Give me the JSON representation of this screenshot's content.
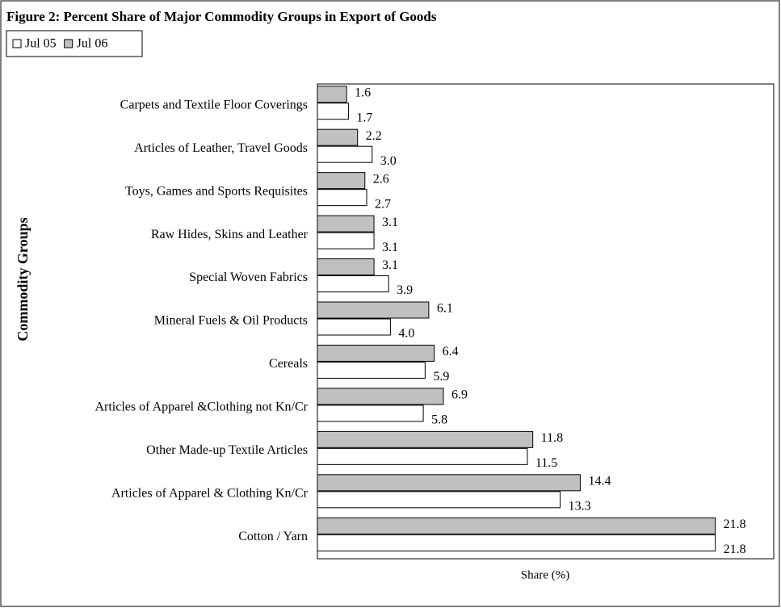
{
  "chart_data": {
    "type": "bar",
    "orientation": "horizontal",
    "title": "Figure 2: Percent Share of Major Commodity Groups in Export of Goods",
    "y_label": "Commodity Groups",
    "x_label": "Share (%)",
    "categories": [
      "Carpets and  Textile Floor Coverings",
      "Articles of Leather, Travel Goods",
      "Toys, Games and Sports Requisites",
      "Raw Hides, Skins and Leather",
      "Special Woven Fabrics",
      "Mineral Fuels & Oil Products",
      "Cereals",
      "Articles of Apparel &Clothing  not Kn/Cr",
      "Other Made-up Textile Articles",
      "Articles of Apparel & Clothing Kn/Cr",
      "Cotton / Yarn"
    ],
    "series": [
      {
        "name": "Jul 05",
        "color": "#ffffff",
        "values": [
          1.7,
          3.0,
          2.7,
          3.1,
          3.9,
          4.0,
          5.9,
          5.8,
          11.5,
          13.3,
          21.8
        ],
        "value_labels": [
          "1.7",
          "3.0",
          "2.7",
          "3.1",
          "3.9",
          "4.0",
          "5.9",
          "5.8",
          "11.5",
          "13.3",
          "21.8"
        ]
      },
      {
        "name": "Jul 06",
        "color": "#c0c0c0",
        "values": [
          1.6,
          2.2,
          2.6,
          3.1,
          3.1,
          6.1,
          6.4,
          6.9,
          11.8,
          14.4,
          21.8
        ],
        "value_labels": [
          "1.6",
          "2.2",
          "2.6",
          "3.1",
          "3.1",
          "6.1",
          "6.4",
          "6.9",
          "11.8",
          "14.4",
          "21.8"
        ]
      }
    ],
    "xlim": [
      0,
      25
    ],
    "legend": "top-left"
  }
}
